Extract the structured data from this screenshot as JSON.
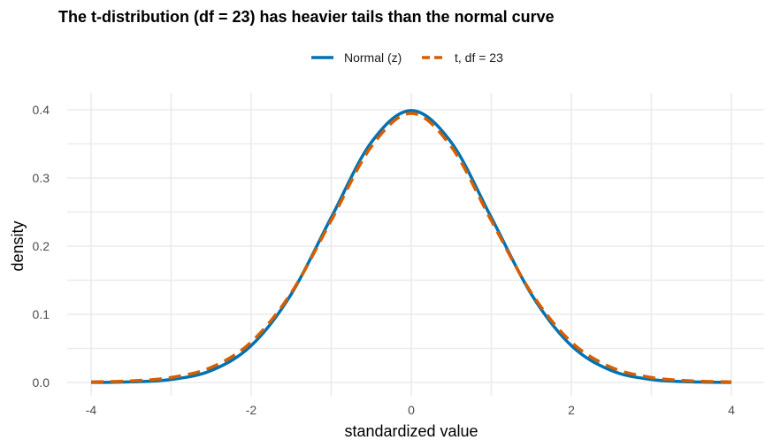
{
  "chart_data": {
    "type": "line",
    "title": "The t-distribution (df = 23) has heavier tails than the normal curve",
    "xlabel": "standardized value",
    "ylabel": "density",
    "xlim": [
      -4,
      4
    ],
    "ylim": [
      0,
      0.4
    ],
    "x_ticks": [
      -4,
      -2,
      0,
      2,
      4
    ],
    "x_tick_labels": [
      "-4",
      "-2",
      "0",
      "2",
      "4"
    ],
    "y_ticks": [
      0,
      0.1,
      0.2,
      0.3,
      0.4
    ],
    "y_tick_labels": [
      "0.0",
      "0.1",
      "0.2",
      "0.3",
      "0.4"
    ],
    "grid": true,
    "legend_position": "top",
    "x": [
      -4,
      -3.5,
      -3,
      -2.5,
      -2,
      -1.5,
      -1,
      -0.5,
      0,
      0.5,
      1,
      1.5,
      2,
      2.5,
      3,
      3.5,
      4
    ],
    "series": [
      {
        "name": "Normal (z)",
        "color": "#0072B2",
        "line_style": "solid",
        "values": [
          0.0001,
          0.0009,
          0.0044,
          0.0175,
          0.054,
          0.1295,
          0.242,
          0.3521,
          0.3989,
          0.3521,
          0.242,
          0.1295,
          0.054,
          0.0175,
          0.0044,
          0.0009,
          0.0001
        ]
      },
      {
        "name": "t, df = 23",
        "color": "#D55E00",
        "line_style": "dashed",
        "values": [
          0.0008,
          0.0023,
          0.0073,
          0.0221,
          0.0592,
          0.1315,
          0.2376,
          0.3458,
          0.3948,
          0.3458,
          0.2376,
          0.1315,
          0.0592,
          0.0221,
          0.0073,
          0.0023,
          0.0008
        ]
      }
    ]
  }
}
